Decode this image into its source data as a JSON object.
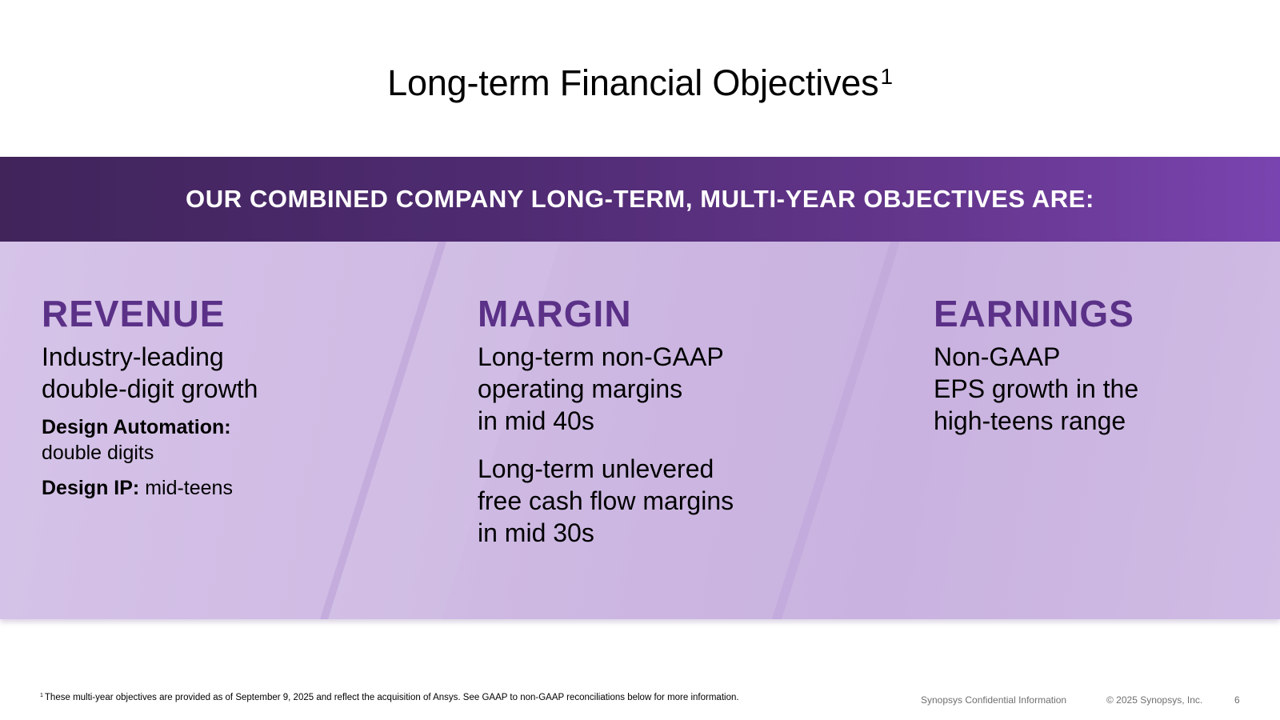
{
  "slide": {
    "title": "Long-term Financial Objectives",
    "title_superscript": "1",
    "banner": "OUR COMBINED COMPANY LONG-TERM, MULTI-YEAR OBJECTIVES ARE:",
    "columns": {
      "revenue": {
        "heading": "REVENUE",
        "line1": "Industry-leading",
        "line2": "double-digit growth",
        "da_label": "Design Automation:",
        "da_value": "double digits",
        "ip_label": "Design IP:",
        "ip_value": " mid-teens"
      },
      "margin": {
        "heading": "MARGIN",
        "p1_line1": "Long-term non-GAAP",
        "p1_line2": "operating margins",
        "p1_line3": "in mid 40s",
        "p2_line1": "Long-term unlevered",
        "p2_line2": "free cash flow margins",
        "p2_line3": "in mid 30s"
      },
      "earnings": {
        "heading": "EARNINGS",
        "line1": "Non-GAAP",
        "line2": "EPS growth in the",
        "line3": "high-teens range"
      }
    },
    "colors": {
      "heading": "#5b3188",
      "banner_start": "#40245a",
      "banner_end": "#7a44b0",
      "panel": "#cdb8e2"
    }
  },
  "footer": {
    "footnote_marker": "1",
    "footnote": "These multi-year objectives are provided as of September 9, 2025 and reflect the acquisition of Ansys. See GAAP to non-GAAP reconciliations below for more information.",
    "confidential": "Synopsys Confidential Information",
    "copyright": "© 2025 Synopsys, Inc.",
    "page_number": "6"
  }
}
